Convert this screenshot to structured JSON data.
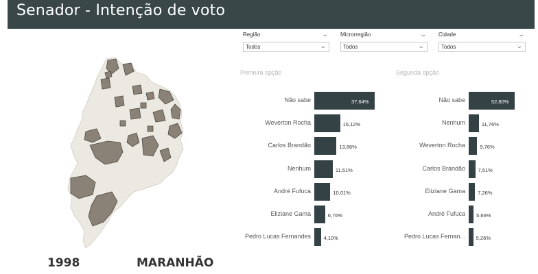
{
  "header": {
    "title": "Senador - Intenção de voto"
  },
  "filters": [
    {
      "label": "Região",
      "value": "Todos"
    },
    {
      "label": "Microrregião",
      "value": "Todos"
    },
    {
      "label": "Cidade",
      "value": "Todos"
    }
  ],
  "map": {
    "year": "1998",
    "state": "MARANHÃO",
    "fill_color": "#8a8276",
    "base_color": "#ebe9e1"
  },
  "colors": {
    "header_bg": "#3a4749",
    "bar": "#354245"
  },
  "chart_data": [
    {
      "type": "bar",
      "title": "Primeira opção",
      "categories": [
        "Não sabe",
        "Weverton Rocha",
        "Carlos Brandão",
        "Nenhum",
        "André Fufuca",
        "Eliziane Gama",
        "Pedro Lucas Fernandes"
      ],
      "values": [
        37.64,
        16.12,
        13.86,
        11.51,
        10.01,
        6.76,
        4.1
      ],
      "labels": [
        "37,64%",
        "16,12%",
        "13,86%",
        "11,51%",
        "10,01%",
        "6,76%",
        "4,10%"
      ]
    },
    {
      "type": "bar",
      "title": "Segunda opção",
      "categories": [
        "Não sabe",
        "Nenhum",
        "Weverton Rocha",
        "Carlos Brandão",
        "Eliziane Gama",
        "André Fufuca",
        "Pedro Lucas Fernan..."
      ],
      "values": [
        52.8,
        11.76,
        9.76,
        7.51,
        7.26,
        5.66,
        5.26
      ],
      "labels": [
        "52,80%",
        "11,76%",
        "9,76%",
        "7,51%",
        "7,26%",
        "5,66%",
        "5,26%"
      ]
    }
  ]
}
